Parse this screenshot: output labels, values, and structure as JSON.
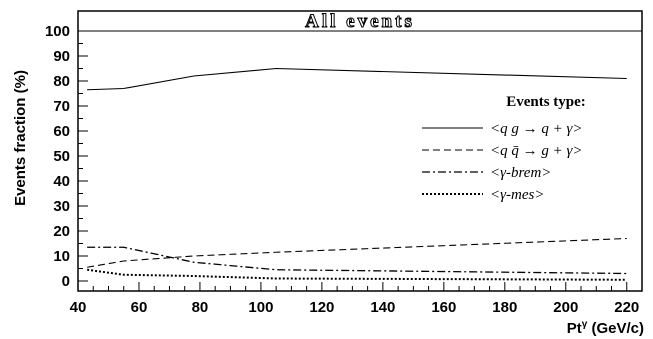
{
  "chart_data": {
    "type": "line",
    "title": "All events",
    "xlabel": "Ptγ (GeV/c)",
    "xlabel_main": "Pt",
    "xlabel_sup": "γ",
    "xlabel_unit": " (GeV/c)",
    "ylabel": "Events fraction (%)",
    "xlim": [
      40,
      225
    ],
    "ylim": [
      -4,
      108
    ],
    "xticks": [
      40,
      60,
      80,
      100,
      120,
      140,
      160,
      180,
      200,
      220
    ],
    "yticks": [
      0,
      10,
      20,
      30,
      40,
      50,
      60,
      70,
      80,
      90,
      100
    ],
    "reference_line": 100,
    "legend_title": "Events type:",
    "legend_position": "center-right",
    "series": [
      {
        "name": "<q g → q + γ>",
        "style": "solid",
        "x": [
          43,
          55,
          78,
          105,
          220
        ],
        "y": [
          76.5,
          77,
          82,
          85,
          81
        ]
      },
      {
        "name": "<q q̄ → g + γ>",
        "style": "dashed",
        "x": [
          43,
          55,
          78,
          105,
          220
        ],
        "y": [
          5.5,
          8,
          10,
          11.5,
          17
        ]
      },
      {
        "name": "<γ-brem>",
        "style": "dashdot",
        "x": [
          43,
          55,
          78,
          105,
          220
        ],
        "y": [
          13.5,
          13.5,
          7.5,
          4.5,
          3
        ]
      },
      {
        "name": "<γ-mes>",
        "style": "dotted",
        "x": [
          43,
          55,
          78,
          105,
          220
        ],
        "y": [
          4.5,
          2.5,
          2,
          1,
          0.5
        ]
      }
    ]
  }
}
